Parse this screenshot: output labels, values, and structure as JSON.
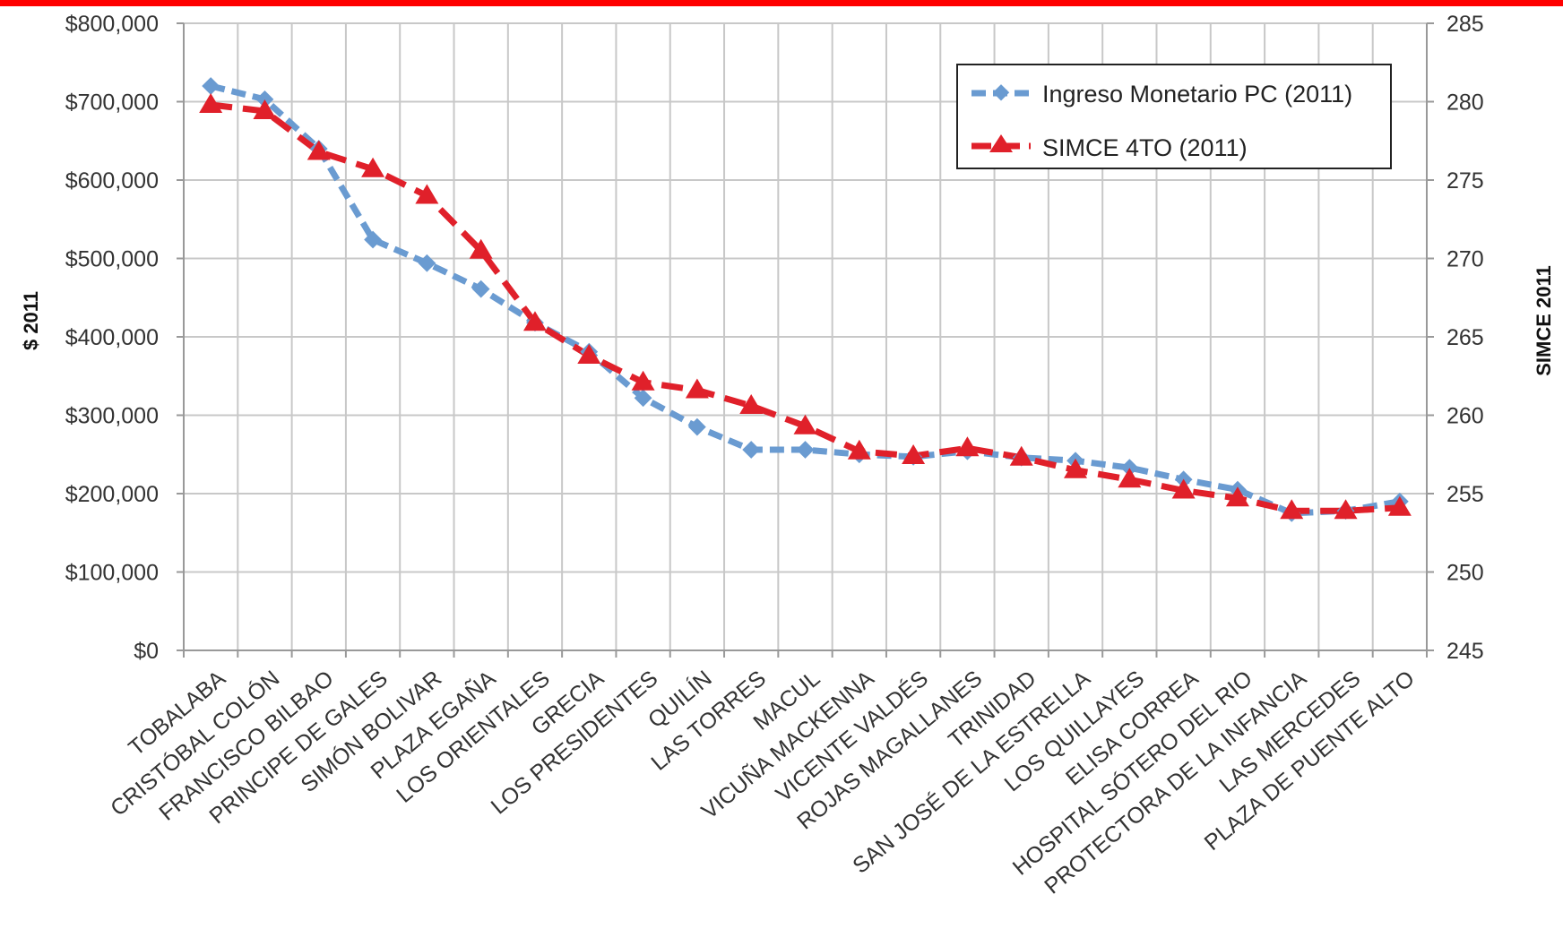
{
  "colors": {
    "top_bar": "#ff0000",
    "income": "#6a9bd1",
    "simce": "#e0202a",
    "grid": "#c8c8c8",
    "axis": "#999999"
  },
  "chart_data": {
    "type": "line",
    "title": "",
    "xlabel": "",
    "ylabel": "$ 2011",
    "y2label": "SIMCE 2011",
    "grid": true,
    "legend_position": "top-right",
    "categories": [
      "TOBALABA",
      "CRISTÓBAL COLÓN",
      "FRANCISCO BILBAO",
      "PRINCIPE DE GALES",
      "SIMÓN BOLIVAR",
      "PLAZA EGAÑA",
      "LOS ORIENTALES",
      "GRECIA",
      "LOS PRESIDENTES",
      "QUILÍN",
      "LAS TORRES",
      "MACUL",
      "VICUÑA MACKENNA",
      "VICENTE VALDÉS",
      "ROJAS MAGALLANES",
      "TRINIDAD",
      "SAN JOSÉ DE LA ESTRELLA",
      "LOS QUILLAYES",
      "ELISA CORREA",
      "HOSPITAL SÓTERO DEL RIO",
      "PROTECTORA DE LA INFANCIA",
      "LAS MERCEDES",
      "PLAZA DE PUENTE ALTO"
    ],
    "y_left": {
      "ylim": [
        0,
        800000
      ],
      "ticks": [
        "$0",
        "$100,000",
        "$200,000",
        "$300,000",
        "$400,000",
        "$500,000",
        "$600,000",
        "$700,000",
        "$800,000"
      ],
      "tick_values": [
        0,
        100000,
        200000,
        300000,
        400000,
        500000,
        600000,
        700000,
        800000
      ]
    },
    "y_right": {
      "ylim": [
        245,
        285
      ],
      "ticks": [
        "245",
        "250",
        "255",
        "260",
        "265",
        "270",
        "275",
        "280",
        "285"
      ],
      "tick_values": [
        245,
        250,
        255,
        260,
        265,
        270,
        275,
        280,
        285
      ]
    },
    "series": [
      {
        "name": "Ingreso Monetario PC (2011)",
        "axis": "left",
        "marker": "diamond",
        "values": [
          720000,
          703000,
          640000,
          524000,
          494000,
          461000,
          418000,
          381000,
          322000,
          285000,
          256000,
          256000,
          250000,
          247000,
          254000,
          246000,
          242000,
          233000,
          218000,
          205000,
          175000,
          178000,
          190000
        ]
      },
      {
        "name": "SIMCE 4TO (2011)",
        "axis": "right",
        "marker": "triangle",
        "values": [
          279.8,
          279.4,
          276.8,
          275.7,
          274.0,
          270.5,
          265.9,
          263.8,
          262.1,
          261.6,
          260.6,
          259.3,
          257.7,
          257.4,
          257.9,
          257.3,
          256.5,
          255.9,
          255.2,
          254.7,
          253.9,
          253.9,
          254.1
        ]
      }
    ]
  }
}
